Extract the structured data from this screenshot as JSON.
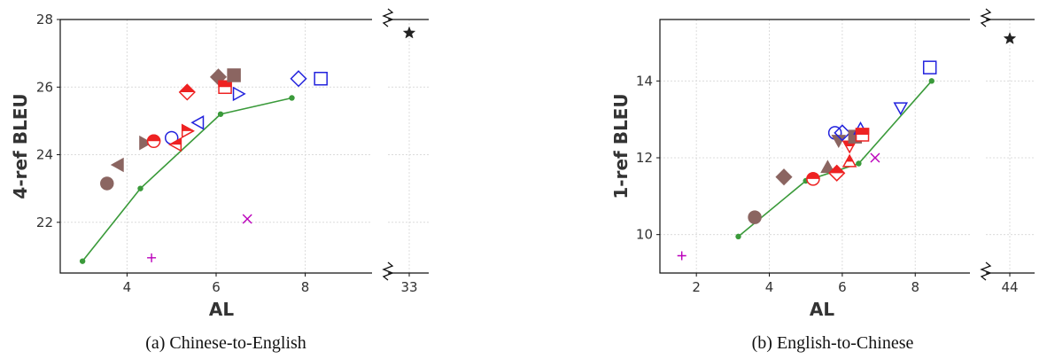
{
  "chart_data": [
    {
      "type": "scatter",
      "caption": "(a)  Chinese-to-English",
      "xlabel": "AL",
      "ylabel": "4-ref BLEU",
      "xlim": [
        2.5,
        9.5
      ],
      "ylim": [
        20.5,
        28
      ],
      "xticks": [
        4,
        6,
        8
      ],
      "yticks": [
        22,
        24,
        26,
        28
      ],
      "broken_x_tick": "33",
      "broken_point": {
        "x": 33,
        "y": 27.6,
        "marker": "star",
        "color": "#222222"
      },
      "line": {
        "color": "#3a9a3a",
        "points": [
          [
            3.0,
            20.85
          ],
          [
            4.3,
            23.0
          ],
          [
            6.1,
            25.2
          ],
          [
            7.7,
            25.68
          ]
        ]
      },
      "points": [
        {
          "x": 3.55,
          "y": 23.15,
          "marker": "circle",
          "color": "#8b6561",
          "fill": "full"
        },
        {
          "x": 3.8,
          "y": 23.7,
          "marker": "tri-left",
          "color": "#8b6561",
          "fill": "full"
        },
        {
          "x": 4.4,
          "y": 24.35,
          "marker": "tri-right",
          "color": "#8b6561",
          "fill": "full"
        },
        {
          "x": 4.6,
          "y": 24.4,
          "marker": "circle",
          "color": "#ee2222",
          "fill": "half"
        },
        {
          "x": 5.0,
          "y": 24.5,
          "marker": "circle",
          "color": "#2222dd",
          "fill": "none"
        },
        {
          "x": 5.1,
          "y": 24.3,
          "marker": "tri-left",
          "color": "#ee2222",
          "fill": "half"
        },
        {
          "x": 5.35,
          "y": 24.7,
          "marker": "tri-right",
          "color": "#ee2222",
          "fill": "half"
        },
        {
          "x": 5.35,
          "y": 25.85,
          "marker": "diamond",
          "color": "#ee2222",
          "fill": "half"
        },
        {
          "x": 5.6,
          "y": 24.95,
          "marker": "tri-left",
          "color": "#2222dd",
          "fill": "none"
        },
        {
          "x": 6.05,
          "y": 26.3,
          "marker": "diamond",
          "color": "#8b6561",
          "fill": "full"
        },
        {
          "x": 6.2,
          "y": 26.0,
          "marker": "square",
          "color": "#ee2222",
          "fill": "half"
        },
        {
          "x": 6.4,
          "y": 26.35,
          "marker": "square",
          "color": "#8b6561",
          "fill": "full"
        },
        {
          "x": 6.5,
          "y": 25.8,
          "marker": "tri-right",
          "color": "#2222dd",
          "fill": "none"
        },
        {
          "x": 7.85,
          "y": 26.25,
          "marker": "diamond",
          "color": "#2222dd",
          "fill": "none"
        },
        {
          "x": 8.35,
          "y": 26.25,
          "marker": "square",
          "color": "#2222dd",
          "fill": "none"
        },
        {
          "x": 6.7,
          "y": 22.1,
          "marker": "x",
          "color": "#bb00bb",
          "fill": "none"
        },
        {
          "x": 4.55,
          "y": 20.95,
          "marker": "plus",
          "color": "#bb00bb",
          "fill": "none"
        }
      ]
    },
    {
      "type": "scatter",
      "caption": "(b)  English-to-Chinese",
      "xlabel": "AL",
      "ylabel": "1-ref BLEU",
      "xlim": [
        1.0,
        9.5
      ],
      "ylim": [
        9.0,
        15.6
      ],
      "xticks": [
        2,
        4,
        6,
        8
      ],
      "yticks": [
        10,
        12,
        14
      ],
      "broken_x_tick": "44",
      "broken_point": {
        "x": 44,
        "y": 15.1,
        "marker": "star",
        "color": "#222222"
      },
      "line": {
        "color": "#3a9a3a",
        "points": [
          [
            3.15,
            9.95
          ],
          [
            5.0,
            11.4
          ],
          [
            6.45,
            11.85
          ],
          [
            8.45,
            14.0
          ]
        ]
      },
      "points": [
        {
          "x": 1.6,
          "y": 9.45,
          "marker": "plus",
          "color": "#bb00bb",
          "fill": "none"
        },
        {
          "x": 3.6,
          "y": 10.45,
          "marker": "circle",
          "color": "#8b6561",
          "fill": "full"
        },
        {
          "x": 4.4,
          "y": 11.5,
          "marker": "diamond",
          "color": "#8b6561",
          "fill": "full"
        },
        {
          "x": 5.2,
          "y": 11.45,
          "marker": "circle",
          "color": "#ee2222",
          "fill": "half"
        },
        {
          "x": 5.6,
          "y": 11.75,
          "marker": "tri-up",
          "color": "#8b6561",
          "fill": "full"
        },
        {
          "x": 5.8,
          "y": 12.65,
          "marker": "circle",
          "color": "#2222dd",
          "fill": "none"
        },
        {
          "x": 5.85,
          "y": 11.6,
          "marker": "diamond",
          "color": "#ee2222",
          "fill": "half"
        },
        {
          "x": 5.9,
          "y": 12.45,
          "marker": "tri-down",
          "color": "#8b6561",
          "fill": "full"
        },
        {
          "x": 6.0,
          "y": 12.65,
          "marker": "diamond",
          "color": "#2222dd",
          "fill": "none"
        },
        {
          "x": 6.2,
          "y": 11.9,
          "marker": "tri-up",
          "color": "#ee2222",
          "fill": "half"
        },
        {
          "x": 6.2,
          "y": 12.3,
          "marker": "tri-down",
          "color": "#ee2222",
          "fill": "half"
        },
        {
          "x": 6.35,
          "y": 12.55,
          "marker": "square",
          "color": "#8b6561",
          "fill": "full"
        },
        {
          "x": 6.5,
          "y": 12.75,
          "marker": "tri-up",
          "color": "#2222dd",
          "fill": "none"
        },
        {
          "x": 6.55,
          "y": 12.6,
          "marker": "square",
          "color": "#ee2222",
          "fill": "half"
        },
        {
          "x": 6.9,
          "y": 12.0,
          "marker": "x",
          "color": "#bb00bb",
          "fill": "none"
        },
        {
          "x": 7.6,
          "y": 13.3,
          "marker": "tri-down",
          "color": "#2222dd",
          "fill": "none"
        },
        {
          "x": 8.4,
          "y": 14.35,
          "marker": "square",
          "color": "#2222dd",
          "fill": "none"
        }
      ]
    }
  ]
}
